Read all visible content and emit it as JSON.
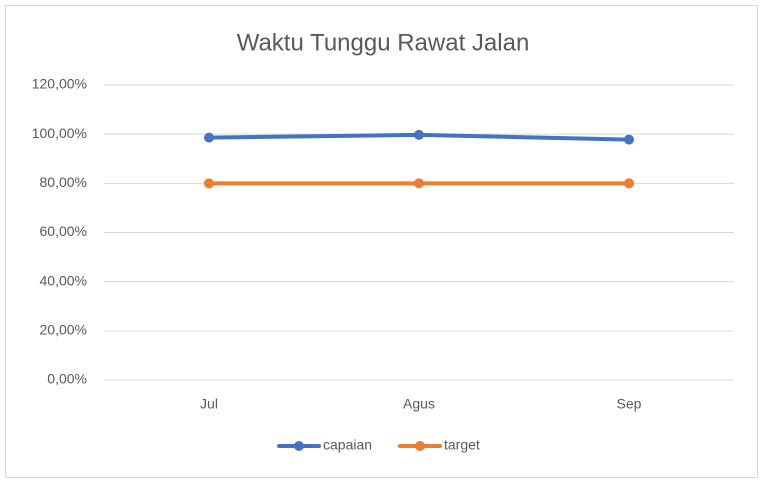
{
  "chart_data": {
    "type": "line",
    "title": "Waktu Tunggu Rawat Jalan",
    "categories": [
      "Jul",
      "Agus",
      "Sep"
    ],
    "series": [
      {
        "name": "capaian",
        "color": "#4472c4",
        "values": [
          98.6,
          99.7,
          97.8
        ]
      },
      {
        "name": "target",
        "color": "#ed7d31",
        "values": [
          80,
          80,
          80
        ]
      }
    ],
    "ylim": [
      0,
      120
    ],
    "yticks": [
      {
        "value": 0,
        "label": "0,00%"
      },
      {
        "value": 20,
        "label": "20,00%"
      },
      {
        "value": 40,
        "label": "40,00%"
      },
      {
        "value": 60,
        "label": "60,00%"
      },
      {
        "value": 80,
        "label": "80,00%"
      },
      {
        "value": 100,
        "label": "100,00%"
      },
      {
        "value": 120,
        "label": "120,00%"
      }
    ],
    "grid": true,
    "legend": "bottom"
  }
}
